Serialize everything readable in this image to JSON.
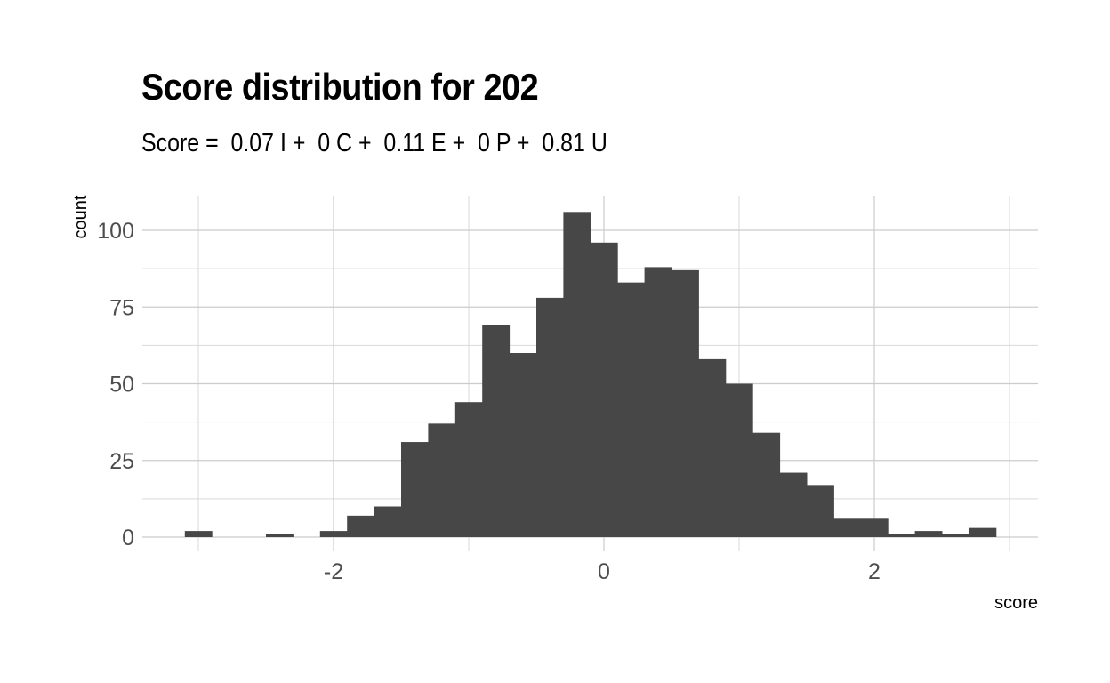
{
  "chart_data": {
    "type": "bar",
    "title": "Score distribution for 202",
    "subtitle": "Score =  0.07 I +  0 C +  0.11 E +  0 P +  0.81 U",
    "xlabel": "score",
    "ylabel": "count",
    "xlim": [
      -3.2,
      3.2
    ],
    "ylim": [
      0,
      110
    ],
    "bin_width": 0.2,
    "x_ticks": [
      -2,
      0,
      2
    ],
    "x_tick_labels": [
      "-2",
      "0",
      "2"
    ],
    "y_ticks": [
      0,
      25,
      50,
      75,
      100
    ],
    "y_tick_labels": [
      "0",
      "25",
      "50",
      "75",
      "100"
    ],
    "grid": true,
    "legend": "none",
    "bar_color": "#474747",
    "bins": [
      {
        "x": -3.0,
        "count": 2
      },
      {
        "x": -2.8,
        "count": 0
      },
      {
        "x": -2.6,
        "count": 0
      },
      {
        "x": -2.4,
        "count": 1
      },
      {
        "x": -2.2,
        "count": 0
      },
      {
        "x": -2.0,
        "count": 2
      },
      {
        "x": -1.8,
        "count": 7
      },
      {
        "x": -1.6,
        "count": 10
      },
      {
        "x": -1.4,
        "count": 31
      },
      {
        "x": -1.2,
        "count": 37
      },
      {
        "x": -1.0,
        "count": 44
      },
      {
        "x": -0.8,
        "count": 69
      },
      {
        "x": -0.6,
        "count": 60
      },
      {
        "x": -0.4,
        "count": 78
      },
      {
        "x": -0.2,
        "count": 106
      },
      {
        "x": 0.0,
        "count": 96
      },
      {
        "x": 0.2,
        "count": 83
      },
      {
        "x": 0.4,
        "count": 88
      },
      {
        "x": 0.6,
        "count": 87
      },
      {
        "x": 0.8,
        "count": 58
      },
      {
        "x": 1.0,
        "count": 50
      },
      {
        "x": 1.2,
        "count": 34
      },
      {
        "x": 1.4,
        "count": 21
      },
      {
        "x": 1.6,
        "count": 17
      },
      {
        "x": 1.8,
        "count": 6
      },
      {
        "x": 2.0,
        "count": 6
      },
      {
        "x": 2.2,
        "count": 1
      },
      {
        "x": 2.4,
        "count": 2
      },
      {
        "x": 2.6,
        "count": 1
      },
      {
        "x": 2.8,
        "count": 3
      }
    ]
  }
}
